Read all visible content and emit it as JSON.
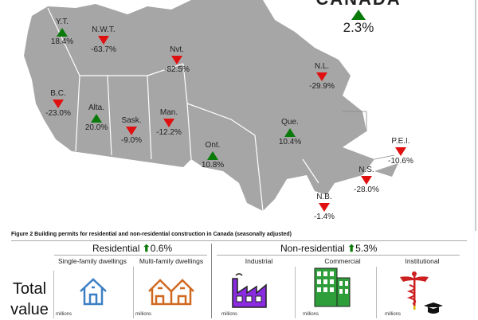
{
  "canada": {
    "title": "CANADA",
    "value": "2.3%",
    "direction": "up"
  },
  "provinces": [
    {
      "name": "Y.T.",
      "value": "18.4%",
      "direction": "up"
    },
    {
      "name": "N.W.T.",
      "value": "-63.7%",
      "direction": "down"
    },
    {
      "name": "Nvt.",
      "value": "-82.5%",
      "direction": "down"
    },
    {
      "name": "B.C.",
      "value": "-23.0%",
      "direction": "down"
    },
    {
      "name": "Alta.",
      "value": "20.0%",
      "direction": "up"
    },
    {
      "name": "Sask.",
      "value": "-9.0%",
      "direction": "down"
    },
    {
      "name": "Man.",
      "value": "-12.2%",
      "direction": "down"
    },
    {
      "name": "Ont.",
      "value": "10.8%",
      "direction": "up"
    },
    {
      "name": "Que.",
      "value": "10.4%",
      "direction": "up"
    },
    {
      "name": "N.L.",
      "value": "-29.9%",
      "direction": "down"
    },
    {
      "name": "P.E.I.",
      "value": "-10.6%",
      "direction": "down"
    },
    {
      "name": "N.S.",
      "value": "-28.0%",
      "direction": "down"
    },
    {
      "name": "N.B.",
      "value": "-1.4%",
      "direction": "down"
    }
  ],
  "colors": {
    "up": "#0a7a0a",
    "down": "#e01010",
    "land": "#a6a6a6",
    "single": "#3d7fc4",
    "multi": "#d0691f",
    "industrial": "#8a2be2",
    "commercial": "#2e9e3a",
    "institutional": "#cc1f1f"
  },
  "figure": {
    "caption": "Figure 2  Building permits for residential and non-residential construction in Canada (seasonally adjusted)",
    "residential": {
      "label": "Residential",
      "change": "0.6%",
      "direction": "up"
    },
    "non_residential": {
      "label": "Non-residential",
      "change": "5.3%",
      "direction": "up"
    },
    "categories": [
      {
        "label": "Single-family dwellings",
        "icon": "house-icon",
        "unit": "millions"
      },
      {
        "label": "Multi-family dwellings",
        "icon": "houses-icon",
        "unit": "millions"
      },
      {
        "label": "Industrial",
        "icon": "factory-icon",
        "unit": "millions"
      },
      {
        "label": "Commercial",
        "icon": "building-icon",
        "unit": "millions"
      },
      {
        "label": "Institutional",
        "icon": "caduceus-icon",
        "unit": "millions"
      }
    ],
    "row_label": "Total value"
  }
}
